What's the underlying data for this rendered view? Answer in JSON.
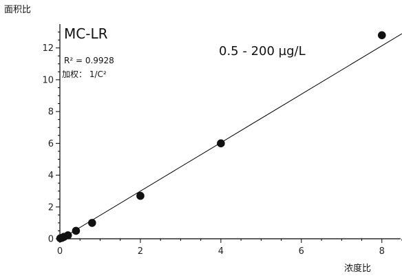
{
  "chart_data": {
    "type": "scatter",
    "xlabel": "浓度比",
    "ylabel": "面积比",
    "xlim": [
      0,
      8.5
    ],
    "ylim": [
      0,
      13.5
    ],
    "x_ticks": [
      0,
      2,
      4,
      6,
      8
    ],
    "y_ticks": [
      0,
      2,
      4,
      6,
      8,
      10,
      12
    ],
    "compound": "MC-LR",
    "r2_text": "R² = 0.9928",
    "weight_text": "加权：  1/C²",
    "range_text": "0.5 - 200 µg/L",
    "grid": false,
    "series": [
      {
        "points": [
          {
            "x": 0.01,
            "y": 0.03
          },
          {
            "x": 0.05,
            "y": 0.06
          },
          {
            "x": 0.1,
            "y": 0.12
          },
          {
            "x": 0.2,
            "y": 0.22
          },
          {
            "x": 0.4,
            "y": 0.5
          },
          {
            "x": 0.8,
            "y": 1.0
          },
          {
            "x": 2,
            "y": 2.7
          },
          {
            "x": 4,
            "y": 6.0
          },
          {
            "x": 8,
            "y": 12.8
          }
        ]
      }
    ],
    "fit_line": {
      "x": [
        0,
        8.5
      ],
      "y": [
        -0.05,
        12.9
      ]
    }
  }
}
